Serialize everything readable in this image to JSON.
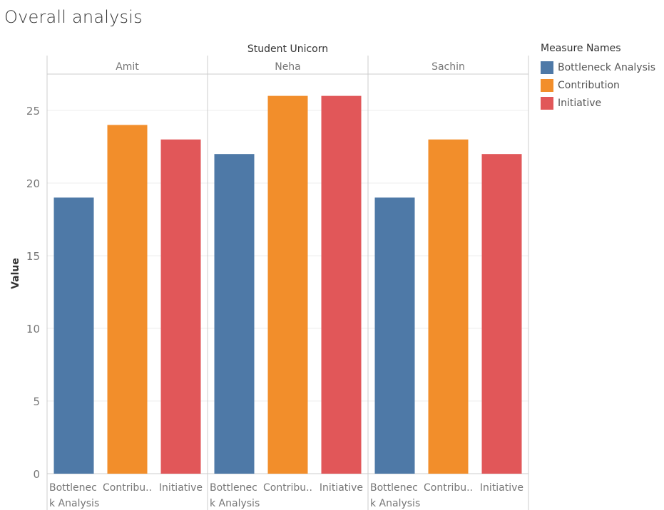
{
  "chart_data": {
    "type": "bar",
    "title": "Overall analysis",
    "column_header": "Student Unicorn",
    "panels": [
      "Amit",
      "Neha",
      "Sachin"
    ],
    "categories": [
      [
        "Bottlenec",
        "k Analysis"
      ],
      [
        "Contribu.."
      ],
      [
        "Initiative"
      ]
    ],
    "series": [
      {
        "name": "Bottleneck Analysis",
        "color": "#4e79a7",
        "values": [
          19,
          22,
          19
        ]
      },
      {
        "name": "Contribution",
        "color": "#f28e2b",
        "values": [
          24,
          26,
          23
        ]
      },
      {
        "name": "Initiative",
        "color": "#e15759",
        "values": [
          23,
          26,
          22
        ]
      }
    ],
    "ylabel": "Value",
    "ylim": [
      0,
      27.5
    ],
    "yticks": [
      0,
      5,
      10,
      15,
      20,
      25
    ],
    "grid": true,
    "legend": {
      "title": "Measure Names",
      "position": "right",
      "items": [
        "Bottleneck Analysis",
        "Contribution",
        "Initiative"
      ]
    }
  }
}
